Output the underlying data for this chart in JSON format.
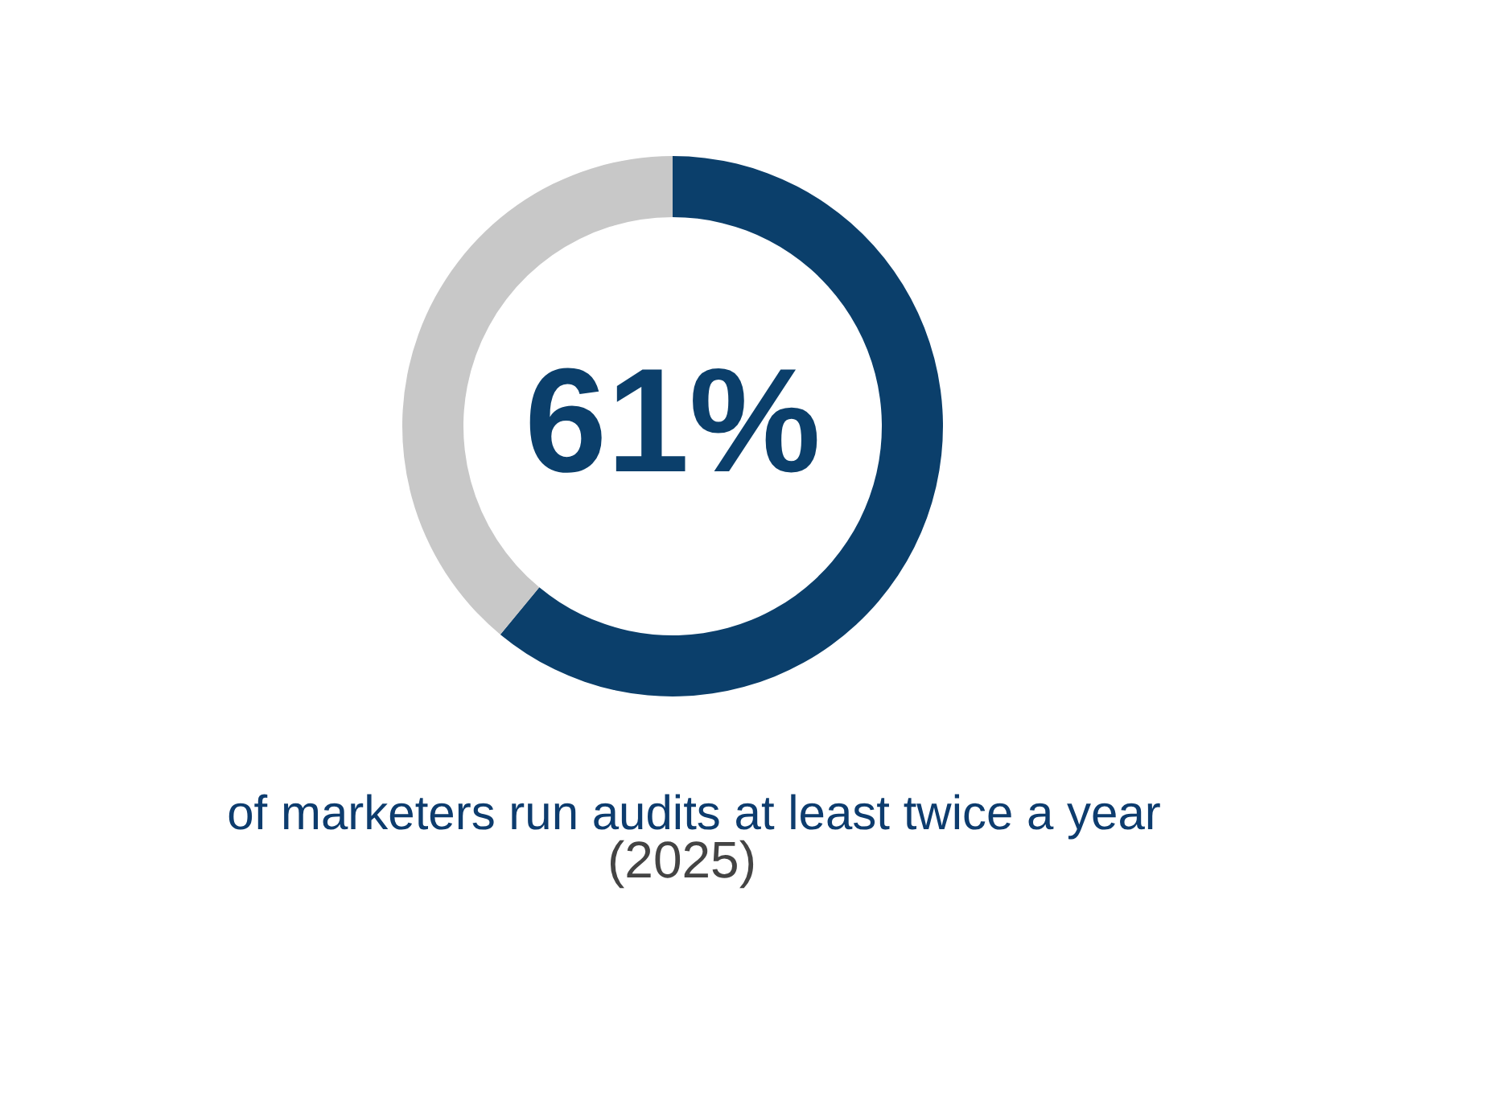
{
  "chart_data": {
    "type": "donut",
    "categories": [
      null,
      null
    ],
    "values": [
      61,
      39
    ],
    "colors": [
      "#0b3f6b",
      "#c8c8c8"
    ],
    "value_labels": [
      "61%",
      null
    ],
    "annotations": [
      "of marketers run audits at least twice a year",
      "(2025)"
    ]
  }
}
